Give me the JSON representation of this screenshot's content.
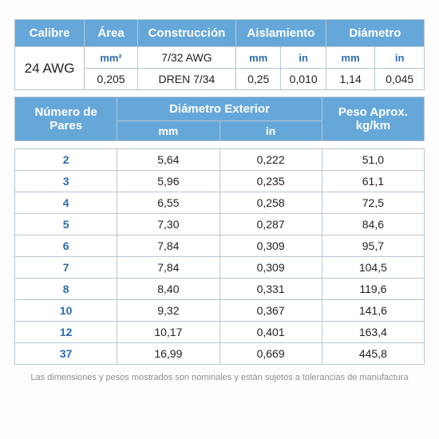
{
  "table1": {
    "headers": {
      "calibre": "Calibre",
      "area": "Área",
      "construccion": "Construcción",
      "aislamiento": "Aislamiento",
      "diametro": "Diámetro"
    },
    "units": {
      "area": "mm²",
      "aisl_mm": "mm",
      "aisl_in": "in",
      "diam_mm": "mm",
      "diam_in": "in"
    },
    "row": {
      "calibre": "24 AWG",
      "area_val": "0,205",
      "constr_top": "7/32 AWG",
      "constr_bot": "DREN 7/34",
      "aisl_mm": "0,25",
      "aisl_in": "0,010",
      "diam_mm": "1,14",
      "diam_in": "0,045"
    }
  },
  "table2": {
    "headers": {
      "pares": "Número de\nPares",
      "diam_ext": "Diámetro Exterior",
      "peso": "Peso Aprox.\nkg/km",
      "mm": "mm",
      "in": "in"
    },
    "rows": [
      {
        "p": "2",
        "mm": "5,64",
        "in": "0,222",
        "kg": "51,0"
      },
      {
        "p": "3",
        "mm": "5,96",
        "in": "0,235",
        "kg": "61,1"
      },
      {
        "p": "4",
        "mm": "6,55",
        "in": "0,258",
        "kg": "72,5"
      },
      {
        "p": "5",
        "mm": "7,30",
        "in": "0,287",
        "kg": "84,6"
      },
      {
        "p": "6",
        "mm": "7,84",
        "in": "0,309",
        "kg": "95,7"
      },
      {
        "p": "7",
        "mm": "7,84",
        "in": "0,309",
        "kg": "104,5"
      },
      {
        "p": "8",
        "mm": "8,40",
        "in": "0,331",
        "kg": "119,6"
      },
      {
        "p": "10",
        "mm": "9,32",
        "in": "0,367",
        "kg": "141,6"
      },
      {
        "p": "12",
        "mm": "10,17",
        "in": "0,401",
        "kg": "163,4"
      },
      {
        "p": "37",
        "mm": "16,99",
        "in": "0,669",
        "kg": "445,8"
      }
    ]
  },
  "footnote": "Las dimensiones y pesos mostrados son nominales y están sujetos a tolerancias de manufactura",
  "style": {
    "header_bg": "#66a7d9",
    "header_fg": "#ffffff",
    "accent_fg": "#2e6bb1",
    "border": "#b8c6d4",
    "body_fg": "#222222",
    "footnote_fg": "#8a8f93",
    "bg": "#fdfdfd"
  }
}
